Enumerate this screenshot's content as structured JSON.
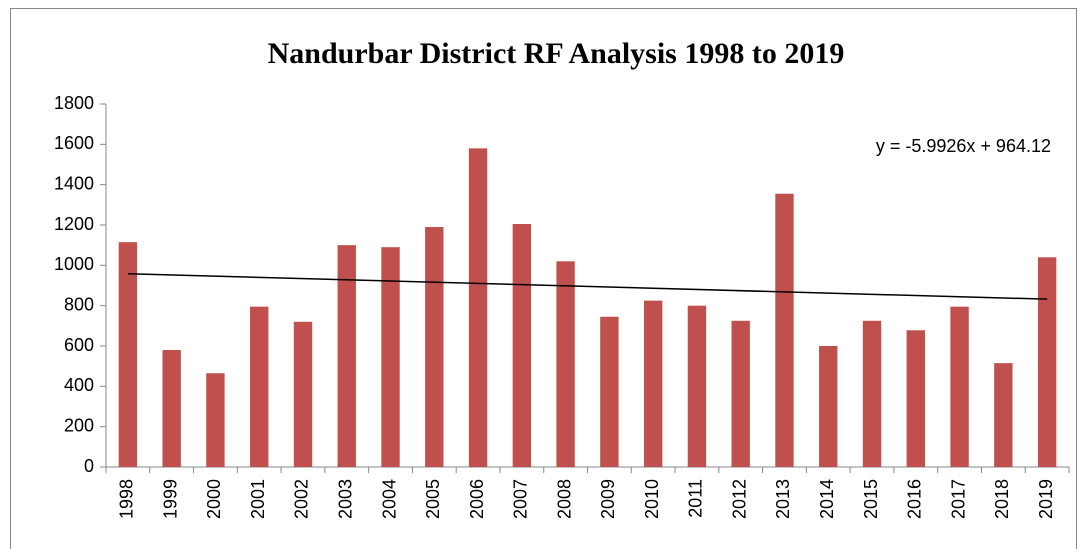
{
  "chart_data": {
    "type": "bar",
    "title": "Nandurbar District RF Analysis 1998 to 2019",
    "categories": [
      "1998",
      "1999",
      "2000",
      "2001",
      "2002",
      "2003",
      "2004",
      "2005",
      "2006",
      "2007",
      "2008",
      "2009",
      "2010",
      "2011",
      "2012",
      "2013",
      "2014",
      "2015",
      "2016",
      "2017",
      "2018",
      "2019"
    ],
    "values": [
      1115,
      580,
      465,
      795,
      720,
      1100,
      1090,
      1190,
      1580,
      1205,
      1020,
      745,
      825,
      800,
      725,
      1355,
      600,
      725,
      678,
      795,
      515,
      1040
    ],
    "color": "#c0504d",
    "ylim": [
      0,
      1800
    ],
    "yticks": [
      0,
      200,
      400,
      600,
      800,
      1000,
      1200,
      1400,
      1600,
      1800
    ],
    "grid": false,
    "trendline": {
      "label": "y = -5.9926x + 964.12",
      "slope": -5.9926,
      "intercept": 964.12
    }
  }
}
